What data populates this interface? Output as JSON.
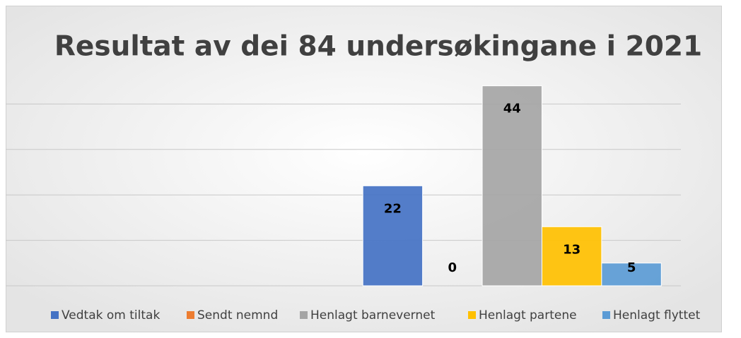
{
  "chart_data": {
    "type": "bar",
    "title": "Resultat av dei 84 undersøkingane i 2021",
    "categories": [
      null,
      null
    ],
    "series": [
      {
        "name": "Vedtak om tiltak",
        "color": "#4472c4",
        "values": [
          null,
          22
        ]
      },
      {
        "name": "Sendt nemnd",
        "color": "#ed7d31",
        "values": [
          null,
          0
        ]
      },
      {
        "name": "Henlagt barnevernet",
        "color": "#a5a5a5",
        "values": [
          null,
          44
        ]
      },
      {
        "name": "Henlagt partene",
        "color": "#ffc000",
        "values": [
          null,
          13
        ]
      },
      {
        "name": "Henlagt flyttet",
        "color": "#5b9bd5",
        "values": [
          null,
          5
        ]
      }
    ],
    "ylim": [
      0,
      50
    ],
    "yticks": [
      0,
      10,
      20,
      30,
      40
    ],
    "grid": true,
    "legend": "bottom"
  }
}
